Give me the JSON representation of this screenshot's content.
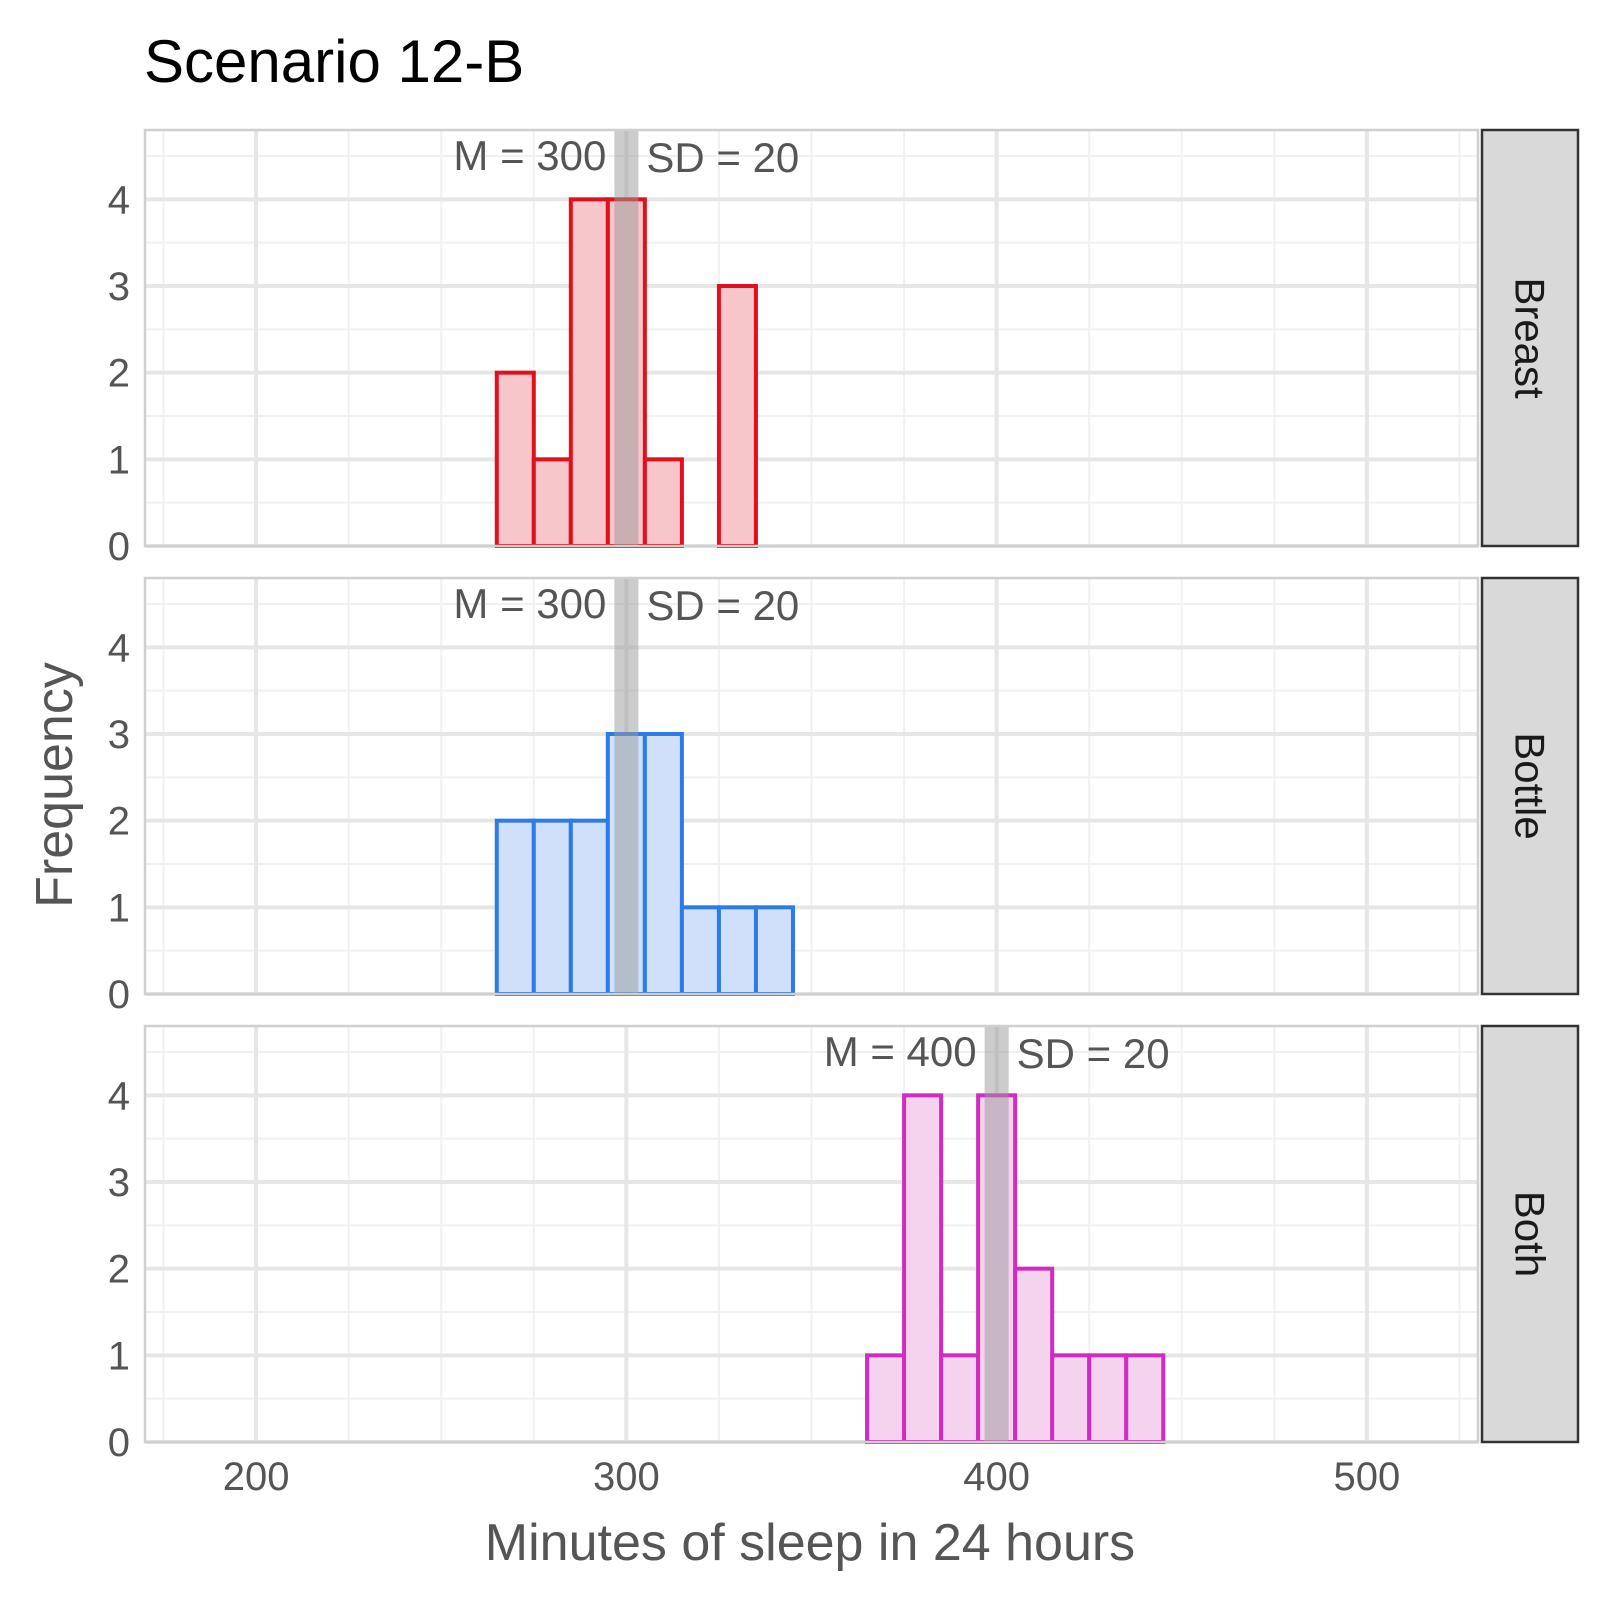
{
  "chart_data": {
    "type": "bar",
    "title": "Scenario 12-B",
    "xlabel": "Minutes of sleep in 24 hours",
    "ylabel": "Frequency",
    "xlim": [
      170,
      530
    ],
    "ylim": [
      0,
      4.8
    ],
    "x_ticks": [
      "200",
      "300",
      "400",
      "500"
    ],
    "y_ticks": [
      "0",
      "1",
      "2",
      "3",
      "4"
    ],
    "bin_width": 10,
    "grid": true,
    "panels": [
      {
        "name": "Breast",
        "color": "#e0101c",
        "fill": "#f7c6cb",
        "mean": 300,
        "mean_label": "M = 300",
        "sd_label": "SD = 20",
        "bins": [
          {
            "x": 270,
            "count": 2
          },
          {
            "x": 280,
            "count": 1
          },
          {
            "x": 290,
            "count": 4
          },
          {
            "x": 300,
            "count": 4
          },
          {
            "x": 310,
            "count": 1
          },
          {
            "x": 330,
            "count": 3
          }
        ]
      },
      {
        "name": "Bottle",
        "color": "#2d7be8",
        "fill": "#d0e0fb",
        "mean": 300,
        "mean_label": "M = 300",
        "sd_label": "SD = 20",
        "bins": [
          {
            "x": 270,
            "count": 2
          },
          {
            "x": 280,
            "count": 2
          },
          {
            "x": 290,
            "count": 2
          },
          {
            "x": 300,
            "count": 3
          },
          {
            "x": 310,
            "count": 3
          },
          {
            "x": 320,
            "count": 1
          },
          {
            "x": 330,
            "count": 1
          },
          {
            "x": 340,
            "count": 1
          }
        ]
      },
      {
        "name": "Both",
        "color": "#d12cbf",
        "fill": "#f5d2ee",
        "mean": 400,
        "mean_label": "M = 400",
        "sd_label": "SD = 20",
        "bins": [
          {
            "x": 370,
            "count": 1
          },
          {
            "x": 380,
            "count": 4
          },
          {
            "x": 390,
            "count": 1
          },
          {
            "x": 400,
            "count": 4
          },
          {
            "x": 410,
            "count": 2
          },
          {
            "x": 420,
            "count": 1
          },
          {
            "x": 430,
            "count": 1
          },
          {
            "x": 440,
            "count": 1
          }
        ]
      }
    ]
  }
}
